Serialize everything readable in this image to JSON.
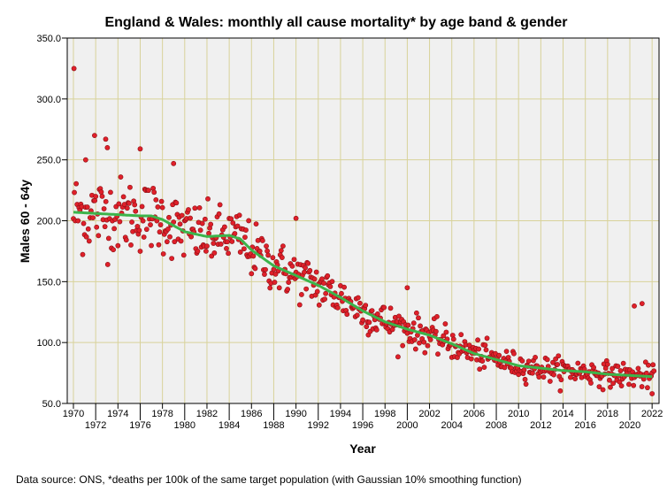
{
  "chart_data": {
    "type": "scatter",
    "title": "England & Wales: monthly all cause mortality* by age band & gender",
    "xlabel": "Year",
    "ylabel": "Males 60 - 64y",
    "footnote": "Data source: ONS, *deaths per 100k of the same target population (with Gaussian 10% smoothing function)",
    "xlim": [
      1970,
      2022.6
    ],
    "ylim": [
      50,
      350
    ],
    "yticks": [
      "50.0",
      "100.0",
      "150.0",
      "200.0",
      "250.0",
      "300.0",
      "350.0"
    ],
    "xticks": [
      "1970",
      "1972",
      "1974",
      "1976",
      "1978",
      "1980",
      "1982",
      "1984",
      "1986",
      "1988",
      "1990",
      "1992",
      "1994",
      "1996",
      "1998",
      "2000",
      "2002",
      "2004",
      "2006",
      "2008",
      "2010",
      "2012",
      "2014",
      "2016",
      "2018",
      "2020",
      "2022"
    ],
    "grid": true,
    "point_color": "#e0202a",
    "line_color": "#3cb44b",
    "smoothed_trend": {
      "x": [
        1970,
        1972,
        1974,
        1976,
        1977,
        1978,
        1980,
        1982,
        1984,
        1985,
        1986,
        1988,
        1990,
        1992,
        1994,
        1996,
        1998,
        2000,
        2002,
        2004,
        2006,
        2008,
        2010,
        2012,
        2014,
        2016,
        2018,
        2020,
        2022
      ],
      "y": [
        207,
        206,
        205,
        204,
        204,
        201,
        191,
        187,
        188,
        185,
        176,
        163,
        155,
        147,
        137,
        126,
        117,
        111,
        106,
        99,
        91,
        86,
        81,
        79,
        77,
        76,
        74,
        73,
        72
      ]
    },
    "scatter_spread": {
      "x": [
        1970,
        1980,
        1990,
        2000,
        2010,
        2022
      ],
      "sd": [
        17,
        13,
        10,
        7,
        5,
        5
      ]
    },
    "outliers": {
      "x": [
        1970.05,
        1971.9,
        1972.9,
        1973.05,
        1976.0,
        1971.1,
        1979.0,
        1990.0,
        2000.0,
        2020.4,
        2021.1,
        2022.0
      ],
      "y": [
        325,
        270,
        267,
        260,
        259,
        250,
        247,
        202,
        145,
        130,
        132,
        58
      ]
    }
  }
}
